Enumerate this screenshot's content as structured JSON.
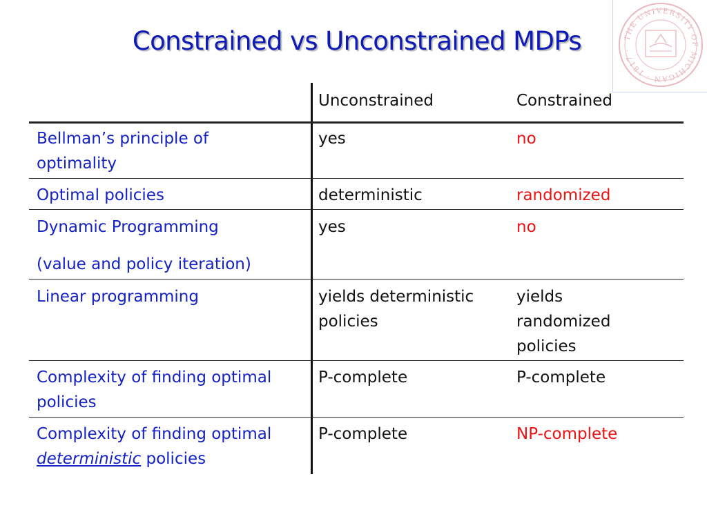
{
  "slide": {
    "title": "Constrained vs Unconstrained MDPs"
  },
  "seal": {
    "text": "THE UNIVERSITY OF MICHIGAN 1817"
  },
  "table": {
    "headers": [
      "",
      "Unconstrained",
      "Constrained"
    ],
    "rows": [
      {
        "label_line1": "Bellman’s principle of",
        "label_line2": "optimality",
        "unconstrained": "yes",
        "constrained": "no"
      },
      {
        "label_line1": "Optimal policies",
        "unconstrained": "deterministic",
        "constrained": "randomized"
      },
      {
        "label_line1": "Dynamic Programming",
        "label_line2": "(value and policy iteration)",
        "unconstrained": "yes",
        "constrained": "no"
      },
      {
        "label_line1": "Linear programming",
        "unconstrained_line1": "yields deterministic",
        "unconstrained_line2": "policies",
        "constrained_line1": "yields",
        "constrained_line2": "randomized",
        "constrained_line3": "policies"
      },
      {
        "label_line1": "Complexity of finding optimal",
        "label_line2": "policies",
        "unconstrained": "P-complete",
        "constrained": "P-complete"
      },
      {
        "label_line1": "Complexity of finding optimal",
        "label_line2_emph": "deterministic",
        "label_line2_rest": " policies",
        "unconstrained": "P-complete",
        "constrained": "NP-complete"
      }
    ]
  },
  "colors": {
    "title": "#0e1ab8",
    "label": "#1421c4",
    "value": "#111111",
    "highlight": "#ee1111"
  }
}
